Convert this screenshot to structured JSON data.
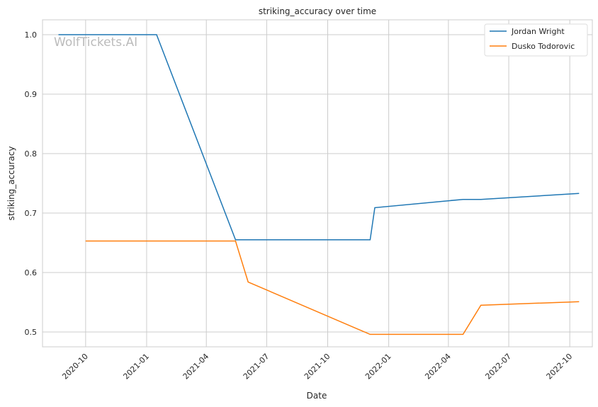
{
  "chart_data": {
    "type": "line",
    "title": "striking_accuracy over time",
    "xlabel": "Date",
    "ylabel": "striking_accuracy",
    "watermark": "WolfTickets.AI",
    "xlim": [
      "2020-07-28",
      "2022-11-04"
    ],
    "ylim": [
      0.475,
      1.025
    ],
    "x_ticks": [
      "2020-10",
      "2021-01",
      "2021-04",
      "2021-07",
      "2021-10",
      "2022-01",
      "2022-04",
      "2022-07",
      "2022-10"
    ],
    "y_ticks": [
      "0.5",
      "0.6",
      "0.7",
      "0.8",
      "0.9",
      "1.0"
    ],
    "grid": true,
    "legend_position": "top-right",
    "series": [
      {
        "name": "Jordan Wright",
        "color": "#1f77b4",
        "x": [
          "2020-08-21",
          "2021-01-16",
          "2021-05-15",
          "2021-12-04",
          "2021-12-11",
          "2022-04-23",
          "2022-05-20",
          "2022-10-15"
        ],
        "y": [
          1.0,
          1.0,
          0.655,
          0.655,
          0.709,
          0.723,
          0.723,
          0.733
        ]
      },
      {
        "name": "Dusko Todorovic",
        "color": "#ff7f0e",
        "x": [
          "2020-10-01",
          "2021-05-15",
          "2021-06-03",
          "2021-12-04",
          "2022-04-23",
          "2022-05-20",
          "2022-10-15"
        ],
        "y": [
          0.653,
          0.653,
          0.584,
          0.496,
          0.496,
          0.545,
          0.551
        ]
      }
    ]
  }
}
